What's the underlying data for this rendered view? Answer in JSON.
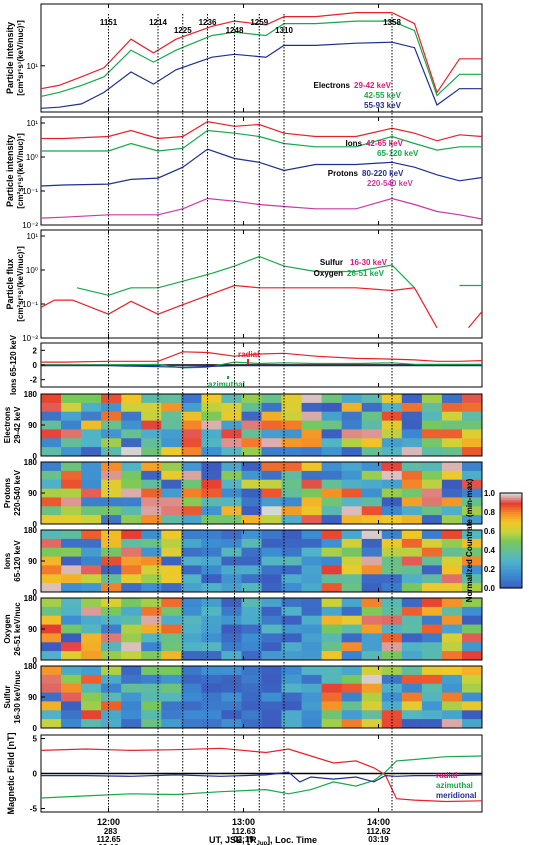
{
  "colors": {
    "red": "#e8202a",
    "green": "#16a84a",
    "blue": "#1f2f8f",
    "magenta": "#c83aa8",
    "black": "#000000",
    "radial_label": "#e0157a"
  },
  "x_axis": {
    "range_minutes": [
      690,
      886
    ],
    "ticks": [
      {
        "t": 720,
        "label": "12:00",
        "extra": [
          "283",
          "112.65",
          "03:19"
        ]
      },
      {
        "t": 780,
        "label": "13:00",
        "extra": [
          "112.63",
          "03:19"
        ]
      },
      {
        "t": 840,
        "label": "14:00",
        "extra": [
          "112.62",
          "03:19"
        ]
      }
    ],
    "title": "UT, JSE, [R",
    "title_sub": "Jup",
    "title_end": "], Loc. Time"
  },
  "event_lines": [
    {
      "t": 720,
      "label": "1151",
      "row": 0
    },
    {
      "t": 742,
      "label": "1214",
      "row": 0
    },
    {
      "t": 753,
      "label": "1225",
      "row": 1
    },
    {
      "t": 764,
      "label": "1236",
      "row": 0
    },
    {
      "t": 776,
      "label": "1248",
      "row": 1
    },
    {
      "t": 787,
      "label": "1259",
      "row": 0
    },
    {
      "t": 798,
      "label": "1310",
      "row": 1
    },
    {
      "t": 846,
      "label": "1358",
      "row": 0
    }
  ],
  "panels": {
    "electrons": {
      "ylabel": "Particle intensity",
      "yunit": "[cm²sr¹s¹(keV/nuc)¹]",
      "tick_label": "10¹",
      "legend": [
        {
          "text": "Electrons",
          "color": "#000000"
        },
        {
          "text": "29-42 keV",
          "color": "#e0157a"
        },
        {
          "text": "42-55 keV",
          "color": "#16a84a"
        },
        {
          "text": "55-93 keV",
          "color": "#1f2f8f"
        }
      ]
    },
    "ions": {
      "ylabel": "Particle intensity",
      "yunit": "[cm²sr¹s¹(keV/nuc)¹]",
      "tick_labels": [
        "10¹",
        "10⁰",
        "10⁻¹",
        "10⁻²"
      ],
      "legend": [
        {
          "text": "Ions",
          "color": "#000000"
        },
        {
          "text": "42-65 keV",
          "color": "#e0157a"
        },
        {
          "text": "65-120 keV",
          "color": "#16a84a"
        },
        {
          "text": "Protons",
          "color": "#000000"
        },
        {
          "text": "80-220 keV",
          "color": "#1f2f8f"
        },
        {
          "text": "220-540 keV",
          "color": "#c83aa8"
        }
      ]
    },
    "heavy": {
      "ylabel": "Particle flux",
      "yunit": "[cm²sr¹s¹(keV/nuc)¹]",
      "tick_labels": [
        "10¹",
        "10⁰",
        "10⁻¹",
        "10⁻²"
      ],
      "legend": [
        {
          "text": "Sulfur",
          "color": "#000000"
        },
        {
          "text": "16-30 keV",
          "color": "#e0157a"
        },
        {
          "text": "Oxygen",
          "color": "#000000"
        },
        {
          "text": "26-51 keV",
          "color": "#16a84a"
        }
      ]
    },
    "anisotropy": {
      "ylabel": "Ions 65-120 keV",
      "tick_labels": [
        "2",
        "0",
        "-2"
      ],
      "labels": [
        {
          "text": "radial",
          "color": "#e8202a"
        },
        {
          "text": "azimuthal",
          "color": "#16a84a"
        }
      ]
    },
    "pads": [
      {
        "label1": "Electrons",
        "label2": "29-42 keV"
      },
      {
        "label1": "Protons",
        "label2": "220-540 keV"
      },
      {
        "label1": "Ions",
        "label2": "65-120 keV"
      },
      {
        "label1": "Oxygen",
        "label2": "26-51 keV/nuc"
      },
      {
        "label1": "Sulfur",
        "label2": "16-30 keV/nuc"
      }
    ],
    "pad_ticks": [
      "180",
      "90",
      "0"
    ],
    "colorbar": {
      "label": "Normalized Countrate (min-max)",
      "ticks": [
        "1.0",
        "0.8",
        "0.6",
        "0.4",
        "0.2",
        "0.0"
      ]
    },
    "mag": {
      "ylabel": "Magnetic Field [nT]",
      "tick_labels": [
        "5",
        "0",
        "-5"
      ],
      "legend": [
        {
          "text": "radial",
          "color": "#e0157a"
        },
        {
          "text": "azimuthal",
          "color": "#16a84a"
        },
        {
          "text": "meridional",
          "color": "#1f2f8f"
        }
      ]
    }
  },
  "chart_data": [
    {
      "type": "line",
      "title": "Electrons",
      "ylabel": "Particle intensity [cm²sr¹s¹(keV/nuc)¹]",
      "yscale": "log",
      "ylim": [
        3,
        50
      ],
      "series": [
        {
          "name": "29-42 keV",
          "color": "#e8202a",
          "x": [
            690,
            698,
            708,
            718,
            730,
            740,
            750,
            766,
            776,
            790,
            798,
            812,
            830,
            846,
            856,
            866,
            876,
            886
          ],
          "y": [
            5.5,
            6,
            7.5,
            9.5,
            20,
            14,
            20,
            28,
            32,
            29,
            36,
            36,
            40,
            40,
            30,
            5,
            12,
            12
          ]
        },
        {
          "name": "42-55 keV",
          "color": "#16a84a",
          "x": [
            690,
            698,
            708,
            718,
            730,
            740,
            750,
            766,
            776,
            790,
            798,
            812,
            830,
            846,
            856,
            866,
            876,
            886
          ],
          "y": [
            4.5,
            5,
            6,
            7.5,
            15,
            11,
            15,
            22,
            24,
            22,
            30,
            30,
            32,
            32,
            25,
            4.6,
            8,
            8
          ]
        },
        {
          "name": "55-93 keV",
          "color": "#1f2f8f",
          "x": [
            690,
            698,
            708,
            718,
            730,
            740,
            750,
            766,
            776,
            790,
            798,
            812,
            830,
            846,
            856,
            866,
            876,
            886
          ],
          "y": [
            3.3,
            3.4,
            3.7,
            5,
            8.5,
            6.2,
            9,
            12.5,
            13.5,
            12.5,
            17,
            17,
            18,
            18.5,
            16,
            3.6,
            5.5,
            5.5
          ]
        }
      ]
    },
    {
      "type": "line",
      "title": "Ions / Protons",
      "ylabel": "Particle intensity [cm²sr¹s¹(keV/nuc)¹]",
      "yscale": "log",
      "ylim": [
        0.01,
        15
      ],
      "series": [
        {
          "name": "Ions 42-65 keV",
          "color": "#e8202a",
          "x": [
            690,
            700,
            720,
            730,
            742,
            753,
            764,
            776,
            787,
            798,
            812,
            830,
            846,
            856,
            866,
            876,
            886
          ],
          "y": [
            3.5,
            3.5,
            4,
            6,
            3.5,
            4,
            11,
            8,
            9,
            5,
            4,
            4,
            7,
            5,
            3,
            4.5,
            4
          ]
        },
        {
          "name": "Ions 65-120 keV",
          "color": "#16a84a",
          "x": [
            690,
            700,
            720,
            730,
            742,
            753,
            764,
            776,
            787,
            798,
            812,
            830,
            846,
            856,
            866,
            876,
            886
          ],
          "y": [
            1.5,
            1.5,
            1.5,
            2.5,
            1.5,
            1.8,
            6,
            5,
            4,
            2.5,
            2,
            2,
            4,
            2.5,
            1.6,
            2,
            2
          ]
        },
        {
          "name": "Protons 80-220 keV",
          "color": "#1f2f8f",
          "x": [
            690,
            700,
            720,
            730,
            742,
            753,
            764,
            776,
            787,
            798,
            812,
            830,
            846,
            856,
            866,
            876,
            886
          ],
          "y": [
            0.14,
            0.15,
            0.16,
            0.22,
            0.24,
            0.5,
            1.7,
            0.9,
            0.7,
            0.4,
            0.6,
            0.6,
            0.7,
            0.5,
            0.3,
            0.2,
            0.25
          ]
        },
        {
          "name": "Protons 220-540 keV",
          "color": "#c83aa8",
          "x": [
            690,
            700,
            720,
            730,
            742,
            753,
            764,
            776,
            787,
            798,
            812,
            830,
            846,
            856,
            866,
            876,
            886
          ],
          "y": [
            0.016,
            0.017,
            0.02,
            0.02,
            0.02,
            0.03,
            0.06,
            0.05,
            0.04,
            0.035,
            0.03,
            0.03,
            0.06,
            0.04,
            0.025,
            0.02,
            0.015
          ]
        }
      ]
    },
    {
      "type": "line",
      "title": "Sulfur / Oxygen",
      "ylabel": "Particle flux [cm²sr¹s¹(keV/nuc)¹]",
      "yscale": "log",
      "ylim": [
        0.01,
        15
      ],
      "series": [
        {
          "name": "Sulfur 16-30 keV",
          "color": "#e8202a",
          "x": [
            690,
            696,
            704,
            720,
            730,
            742,
            752,
            766,
            776,
            787,
            798,
            812,
            830,
            846,
            856,
            866,
            870,
            880,
            886
          ],
          "y": [
            0.08,
            0.13,
            0.13,
            0.05,
            0.12,
            0.05,
            0.09,
            0.2,
            0.35,
            0.3,
            0.3,
            0.3,
            0.3,
            0.25,
            0.3,
            0.02,
            null,
            0.02,
            0.06
          ]
        },
        {
          "name": "Oxygen 26-51 keV",
          "color": "#16a84a",
          "x": [
            706,
            720,
            730,
            742,
            752,
            766,
            776,
            787,
            798,
            812,
            830,
            846,
            856,
            866,
            876,
            886
          ],
          "y": [
            0.3,
            0.18,
            0.3,
            0.3,
            0.45,
            0.8,
            1.3,
            2.5,
            1.3,
            0.9,
            0.9,
            1.4,
            0.3,
            null,
            0.35,
            0.35
          ]
        }
      ]
    },
    {
      "type": "line",
      "title": "Ions 65-120 keV anisotropy",
      "ylim": [
        -3,
        3
      ],
      "series": [
        {
          "name": "radial",
          "color": "#e8202a",
          "x": [
            690,
            700,
            720,
            742,
            753,
            764,
            776,
            787,
            798,
            812,
            830,
            846,
            856,
            866,
            876,
            886
          ],
          "y": [
            0.4,
            0.4,
            0.5,
            0.5,
            1.8,
            1.7,
            1.2,
            1.5,
            1.6,
            1.2,
            0.9,
            0.8,
            0.7,
            0.5,
            0.5,
            0.6
          ]
        },
        {
          "name": "azimuthal",
          "color": "#16a84a",
          "x": [
            690,
            700,
            720,
            742,
            753,
            764,
            776,
            787,
            798,
            812,
            830,
            846,
            856,
            866,
            876,
            886
          ],
          "y": [
            0,
            0,
            0,
            0.1,
            -0.4,
            -0.3,
            0.4,
            0.2,
            0.3,
            0.2,
            0.2,
            0.3,
            0.1,
            0.1,
            0.1,
            0.1
          ]
        },
        {
          "name": "meridional",
          "color": "#1f2f8f",
          "x": [
            690,
            720,
            753,
            764,
            776,
            798,
            830,
            886
          ],
          "y": [
            -0.1,
            -0.1,
            -0.3,
            -0.2,
            -0.1,
            -0.1,
            -0.1,
            -0.1
          ]
        }
      ]
    },
    {
      "type": "line",
      "title": "Magnetic Field",
      "ylabel": "Magnetic Field [nT]",
      "ylim": [
        -5.5,
        5.5
      ],
      "series": [
        {
          "name": "radial",
          "color": "#e8202a",
          "x": [
            690,
            710,
            730,
            750,
            770,
            790,
            800,
            810,
            820,
            830,
            838,
            843,
            848,
            856,
            870,
            886
          ],
          "y": [
            3.3,
            3.5,
            3.3,
            3.4,
            3.6,
            3.0,
            3.5,
            2.5,
            1.5,
            1.8,
            0.8,
            -0.2,
            -3.6,
            -3.8,
            -4.0,
            -3.9
          ]
        },
        {
          "name": "azimuthal",
          "color": "#16a84a",
          "x": [
            690,
            710,
            730,
            750,
            770,
            790,
            800,
            810,
            820,
            830,
            838,
            843,
            848,
            856,
            870,
            886
          ],
          "y": [
            -3.5,
            -3.2,
            -2.9,
            -3.0,
            -2.6,
            -2.3,
            -2.9,
            -2.3,
            -1.2,
            -1.8,
            -1.0,
            0.2,
            1.8,
            2.0,
            2.4,
            2.5
          ]
        },
        {
          "name": "meridional",
          "color": "#1f2f8f",
          "x": [
            690,
            710,
            730,
            750,
            770,
            790,
            800,
            805,
            810,
            820,
            830,
            838,
            843,
            848,
            856,
            870,
            886
          ],
          "y": [
            -0.3,
            -0.3,
            -0.4,
            -0.2,
            -0.4,
            -0.2,
            0.2,
            -1.2,
            -0.5,
            -0.8,
            -0.5,
            -1.2,
            -0.3,
            -0.4,
            -0.3,
            -0.3,
            -0.2
          ]
        }
      ]
    }
  ]
}
